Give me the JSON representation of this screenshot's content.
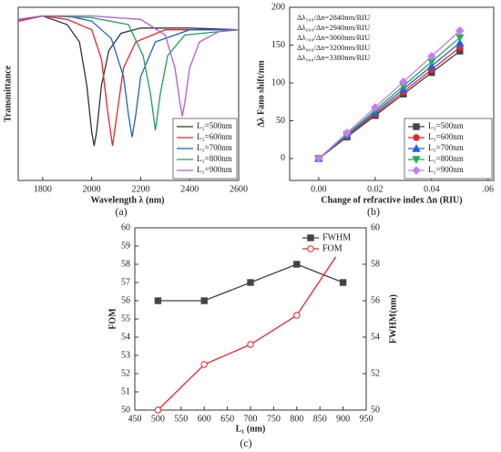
{
  "chart_data": [
    {
      "type": "line",
      "panel_label": "(a)",
      "xlabel": "Wavelength λ (nm)",
      "ylabel": "Transmittance",
      "xlim": [
        1700,
        2600
      ],
      "xticks": [
        1800,
        2000,
        2200,
        2400,
        2600
      ],
      "ylim": [
        0,
        1
      ],
      "legend": "lower-right",
      "series": [
        {
          "name": "L₁=500nm",
          "color": "#333333",
          "x": [
            1700,
            1800,
            1900,
            1950,
            1980,
            2000,
            2010,
            2020,
            2040,
            2070,
            2120,
            2200,
            2400,
            2600
          ],
          "values": [
            0.92,
            0.95,
            0.9,
            0.8,
            0.55,
            0.28,
            0.2,
            0.28,
            0.55,
            0.75,
            0.85,
            0.88,
            0.88,
            0.87
          ]
        },
        {
          "name": "L₁=600nm",
          "color": "#e8262a",
          "x": [
            1700,
            1800,
            1900,
            2000,
            2040,
            2065,
            2085,
            2105,
            2130,
            2180,
            2300,
            2600
          ],
          "values": [
            0.92,
            0.95,
            0.93,
            0.87,
            0.7,
            0.4,
            0.2,
            0.4,
            0.65,
            0.8,
            0.87,
            0.87
          ]
        },
        {
          "name": "L₁=700nm",
          "color": "#1f5fc8",
          "x": [
            1700,
            1800,
            1900,
            2000,
            2080,
            2130,
            2150,
            2165,
            2180,
            2200,
            2260,
            2400,
            2600
          ],
          "values": [
            0.93,
            0.95,
            0.95,
            0.92,
            0.82,
            0.6,
            0.38,
            0.25,
            0.38,
            0.6,
            0.8,
            0.87,
            0.87
          ]
        },
        {
          "name": "L₁=800nm",
          "color": "#1e9e5a",
          "x": [
            1700,
            1800,
            2000,
            2150,
            2210,
            2240,
            2260,
            2280,
            2310,
            2380,
            2600
          ],
          "values": [
            0.93,
            0.95,
            0.94,
            0.9,
            0.72,
            0.5,
            0.29,
            0.5,
            0.72,
            0.84,
            0.87
          ]
        },
        {
          "name": "L₁=900nm",
          "color": "#b35bd6",
          "x": [
            1700,
            1800,
            2000,
            2200,
            2300,
            2340,
            2360,
            2370,
            2380,
            2400,
            2440,
            2520,
            2600
          ],
          "values": [
            0.93,
            0.95,
            0.95,
            0.93,
            0.84,
            0.65,
            0.45,
            0.37,
            0.45,
            0.65,
            0.8,
            0.86,
            0.87
          ]
        }
      ]
    },
    {
      "type": "line",
      "panel_label": "(b)",
      "xlabel": "Change of refractive index Δn (RIU)",
      "ylabel": "Δλ Fano shift/nm",
      "xlim": [
        -0.0103,
        0.062
      ],
      "xticks": [
        {
          "value": 0,
          "label": "0.00"
        },
        {
          "value": 0.02,
          "label": "0.02"
        },
        {
          "value": 0.04,
          "label": "0.04"
        },
        {
          "value": 0.06,
          "label": ".06"
        }
      ],
      "ylim": [
        -29,
        200
      ],
      "yticks": [
        0,
        50,
        100,
        150,
        200
      ],
      "legend": "lower-right",
      "annotations": [
        "Δλ₅₀₀/Δn=2840nm/RIU",
        "Δλ₆₀₀/Δn=2940nm/RIU",
        "Δλ₇₀₀/Δn=3060nm/RIU",
        "Δλ₈₀₀/Δn=3200nm/RIU",
        "Δλ₉₀₀/Δn=3380nm/RIU"
      ],
      "x": [
        0,
        0.01,
        0.02,
        0.03,
        0.04,
        0.05
      ],
      "series": [
        {
          "name": "L₁=500nm",
          "color": "#444444",
          "marker": "square",
          "values": [
            0,
            28.4,
            56.8,
            85.2,
            113.6,
            142
          ]
        },
        {
          "name": "L₁=600nm",
          "color": "#e8262a",
          "marker": "circle",
          "values": [
            0,
            29.4,
            58.8,
            88.2,
            117.6,
            147
          ]
        },
        {
          "name": "L₁=700nm",
          "color": "#1f5fe8",
          "marker": "triangle-up",
          "values": [
            0,
            30.6,
            61.2,
            91.8,
            122.4,
            153
          ]
        },
        {
          "name": "L₁=800nm",
          "color": "#1eb050",
          "marker": "triangle-down",
          "values": [
            0,
            32,
            64,
            96,
            128,
            160
          ]
        },
        {
          "name": "L₁=900nm",
          "color": "#c77cf0",
          "marker": "diamond",
          "values": [
            0,
            33.8,
            67.6,
            101.4,
            135.2,
            169
          ]
        }
      ]
    },
    {
      "type": "line",
      "panel_label": "(c)",
      "xlabel": "L₁ (nm)",
      "ylabel": "FOM",
      "y2label": "FWHM(nm)",
      "xlim": [
        450,
        950
      ],
      "xticks": [
        450,
        500,
        550,
        600,
        650,
        700,
        750,
        800,
        850,
        900,
        950
      ],
      "ylim": [
        50,
        60
      ],
      "yticks": [
        50,
        51,
        52,
        53,
        54,
        55,
        56,
        57,
        58,
        59,
        60
      ],
      "y2lim": [
        50,
        60
      ],
      "y2ticks": [
        50,
        52,
        54,
        56,
        58,
        60
      ],
      "legend": "upper-right",
      "x": [
        500,
        600,
        700,
        800,
        900
      ],
      "series": [
        {
          "name": "FWHM",
          "color": "#444444",
          "marker": "square",
          "axis": "y2",
          "values": [
            56,
            56,
            57,
            58,
            57
          ]
        },
        {
          "name": "FOM",
          "color": "#e8262a",
          "marker": "circle",
          "filled": false,
          "values": [
            50,
            52.5,
            53.6,
            55.2,
            59
          ]
        }
      ]
    }
  ]
}
